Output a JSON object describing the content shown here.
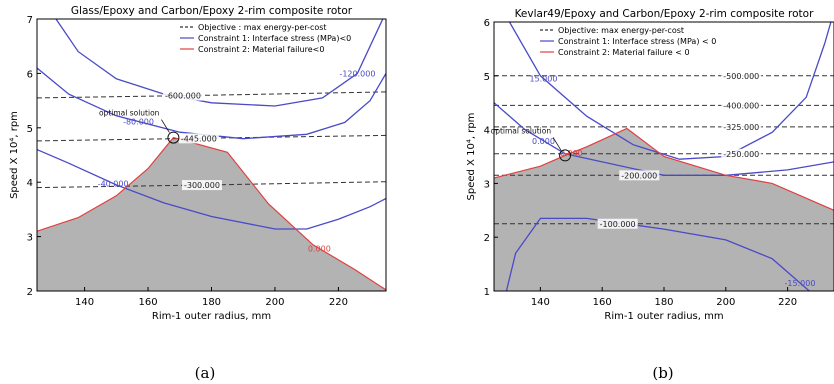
{
  "chart_data": [
    {
      "type": "line",
      "panel_caption": "(a)",
      "title": "Glass/Epoxy and Carbon/Epoxy 2-rim composite rotor",
      "xlabel": "Rim-1 outer radius, mm",
      "ylabel": "Speed X 10⁴, rpm",
      "xlim": [
        125,
        235
      ],
      "ylim": [
        2,
        7
      ],
      "xticks": [
        140,
        160,
        180,
        200,
        220
      ],
      "yticks": [
        2,
        3,
        4,
        5,
        6,
        7
      ],
      "legend": {
        "placement": "top-right",
        "entries": [
          "Objective : max energy-per-cost",
          "Constraint 1: Interface stress (MPa)<0",
          "Constraint 2: Material failure<0"
        ]
      },
      "colors": {
        "objective": "#333333",
        "constraint1": "#4a4ac8",
        "constraint2": "#e04040",
        "infeasible": "#b3b3b3"
      },
      "objective_contours": [
        {
          "label": "-600.000",
          "label_x": 171,
          "points": [
            [
              125,
              5.55
            ],
            [
              180,
              5.6
            ],
            [
              235,
              5.66
            ]
          ]
        },
        {
          "label": "-445.000",
          "label_x": 176,
          "points": [
            [
              125,
              4.76
            ],
            [
              180,
              4.81
            ],
            [
              235,
              4.86
            ]
          ]
        },
        {
          "label": "-300.000",
          "label_x": 177,
          "points": [
            [
              125,
              3.9
            ],
            [
              180,
              3.95
            ],
            [
              235,
              4.01
            ]
          ]
        }
      ],
      "interface_stress_contours": [
        {
          "label": "-120.000",
          "label_x": 226,
          "points": [
            [
              131,
              7.0
            ],
            [
              138,
              6.4
            ],
            [
              150,
              5.9
            ],
            [
              165,
              5.62
            ],
            [
              180,
              5.46
            ],
            [
              200,
              5.4
            ],
            [
              215,
              5.55
            ],
            [
              226,
              6.0
            ],
            [
              234,
              7.0
            ]
          ]
        },
        {
          "label": "-80.000",
          "label_x": 157,
          "points": [
            [
              125,
              6.1
            ],
            [
              135,
              5.62
            ],
            [
              150,
              5.22
            ],
            [
              170,
              4.92
            ],
            [
              190,
              4.8
            ],
            [
              210,
              4.88
            ],
            [
              222,
              5.1
            ],
            [
              230,
              5.5
            ],
            [
              235,
              6.0
            ]
          ]
        },
        {
          "label": "-40.000",
          "label_x": 149,
          "points": [
            [
              125,
              4.6
            ],
            [
              135,
              4.35
            ],
            [
              150,
              3.95
            ],
            [
              165,
              3.62
            ],
            [
              180,
              3.37
            ],
            [
              200,
              3.14
            ],
            [
              210,
              3.14
            ],
            [
              220,
              3.32
            ],
            [
              230,
              3.55
            ],
            [
              235,
              3.7
            ]
          ]
        }
      ],
      "material_failure_boundary": {
        "label": "0.000",
        "label_x": 214,
        "points": [
          [
            125,
            3.1
          ],
          [
            138,
            3.35
          ],
          [
            150,
            3.75
          ],
          [
            160,
            4.25
          ],
          [
            168,
            4.82
          ],
          [
            185,
            4.55
          ],
          [
            198,
            3.6
          ],
          [
            212,
            2.85
          ],
          [
            225,
            2.4
          ],
          [
            235,
            2.02
          ]
        ]
      },
      "optimal_solution": {
        "label": "optimal solution",
        "x": 168,
        "y": 4.82
      }
    },
    {
      "type": "line",
      "panel_caption": "(b)",
      "title": "Kevlar49/Epoxy and Carbon/Epoxy 2-rim composite rotor",
      "xlabel": "Rim-1 outer radius, mm",
      "ylabel": "Speed X 10⁴, rpm",
      "xlim": [
        125,
        235
      ],
      "ylim": [
        1,
        6
      ],
      "xticks": [
        140,
        160,
        180,
        200,
        220
      ],
      "yticks": [
        1,
        2,
        3,
        4,
        5,
        6
      ],
      "legend": {
        "placement": "top-right",
        "entries": [
          "Objective: max energy-per-cost",
          "Constraint 1: Interface stress (MPa) < 0",
          "Constraint 2: Material failure < 0"
        ]
      },
      "colors": {
        "objective": "#333333",
        "constraint1": "#4a4ac8",
        "constraint2": "#e04040",
        "infeasible": "#b3b3b3"
      },
      "objective_contours": [
        {
          "label": "-500.000",
          "label_x": 205,
          "points": [
            [
              125,
              5.0
            ],
            [
              180,
              5.0
            ],
            [
              235,
              5.0
            ]
          ]
        },
        {
          "label": "-400.000",
          "label_x": 205,
          "points": [
            [
              125,
              4.45
            ],
            [
              180,
              4.45
            ],
            [
              235,
              4.45
            ]
          ]
        },
        {
          "label": "-325.000",
          "label_x": 205,
          "points": [
            [
              125,
              4.05
            ],
            [
              180,
              4.05
            ],
            [
              235,
              4.05
            ]
          ]
        },
        {
          "label": "-250.000",
          "label_x": 205,
          "points": [
            [
              125,
              3.55
            ],
            [
              180,
              3.55
            ],
            [
              235,
              3.55
            ]
          ]
        },
        {
          "label": "-200.000",
          "label_x": 172,
          "points": [
            [
              125,
              3.15
            ],
            [
              180,
              3.15
            ],
            [
              235,
              3.15
            ]
          ]
        },
        {
          "label": "-100.000",
          "label_x": 165,
          "points": [
            [
              125,
              2.25
            ],
            [
              180,
              2.25
            ],
            [
              235,
              2.25
            ]
          ]
        }
      ],
      "interface_stress_contours": [
        {
          "label": "15.000",
          "label_x": 141,
          "points": [
            [
              130,
              6.0
            ],
            [
              140,
              5.0
            ],
            [
              155,
              4.25
            ],
            [
              170,
              3.72
            ],
            [
              185,
              3.45
            ],
            [
              200,
              3.5
            ],
            [
              215,
              3.95
            ],
            [
              226,
              4.6
            ],
            [
              232,
              5.6
            ],
            [
              234,
              6.0
            ]
          ]
        },
        {
          "label": "0.000",
          "label_x": 141,
          "points": [
            [
              125,
              4.5
            ],
            [
              135,
              4.0
            ],
            [
              148,
              3.55
            ],
            [
              160,
              3.4
            ],
            [
              180,
              3.15
            ],
            [
              200,
              3.15
            ],
            [
              220,
              3.25
            ],
            [
              235,
              3.4
            ]
          ]
        },
        {
          "label": "-15.000",
          "label_x": 224,
          "points": [
            [
              129,
              1.0
            ],
            [
              132,
              1.7
            ],
            [
              140,
              2.35
            ],
            [
              155,
              2.35
            ],
            [
              180,
              2.15
            ],
            [
              200,
              1.95
            ],
            [
              215,
              1.6
            ],
            [
              225,
              1.1
            ],
            [
              227,
              1.0
            ]
          ]
        }
      ],
      "material_failure_boundary": {
        "label": "0.000",
        "label_x": 150,
        "points": [
          [
            125,
            3.1
          ],
          [
            140,
            3.32
          ],
          [
            148,
            3.52
          ],
          [
            155,
            3.68
          ],
          [
            168,
            4.02
          ],
          [
            180,
            3.5
          ],
          [
            200,
            3.15
          ],
          [
            215,
            3.0
          ],
          [
            235,
            2.5
          ]
        ]
      },
      "optimal_solution": {
        "label": "optimal solution",
        "x": 148,
        "y": 3.52
      }
    }
  ]
}
